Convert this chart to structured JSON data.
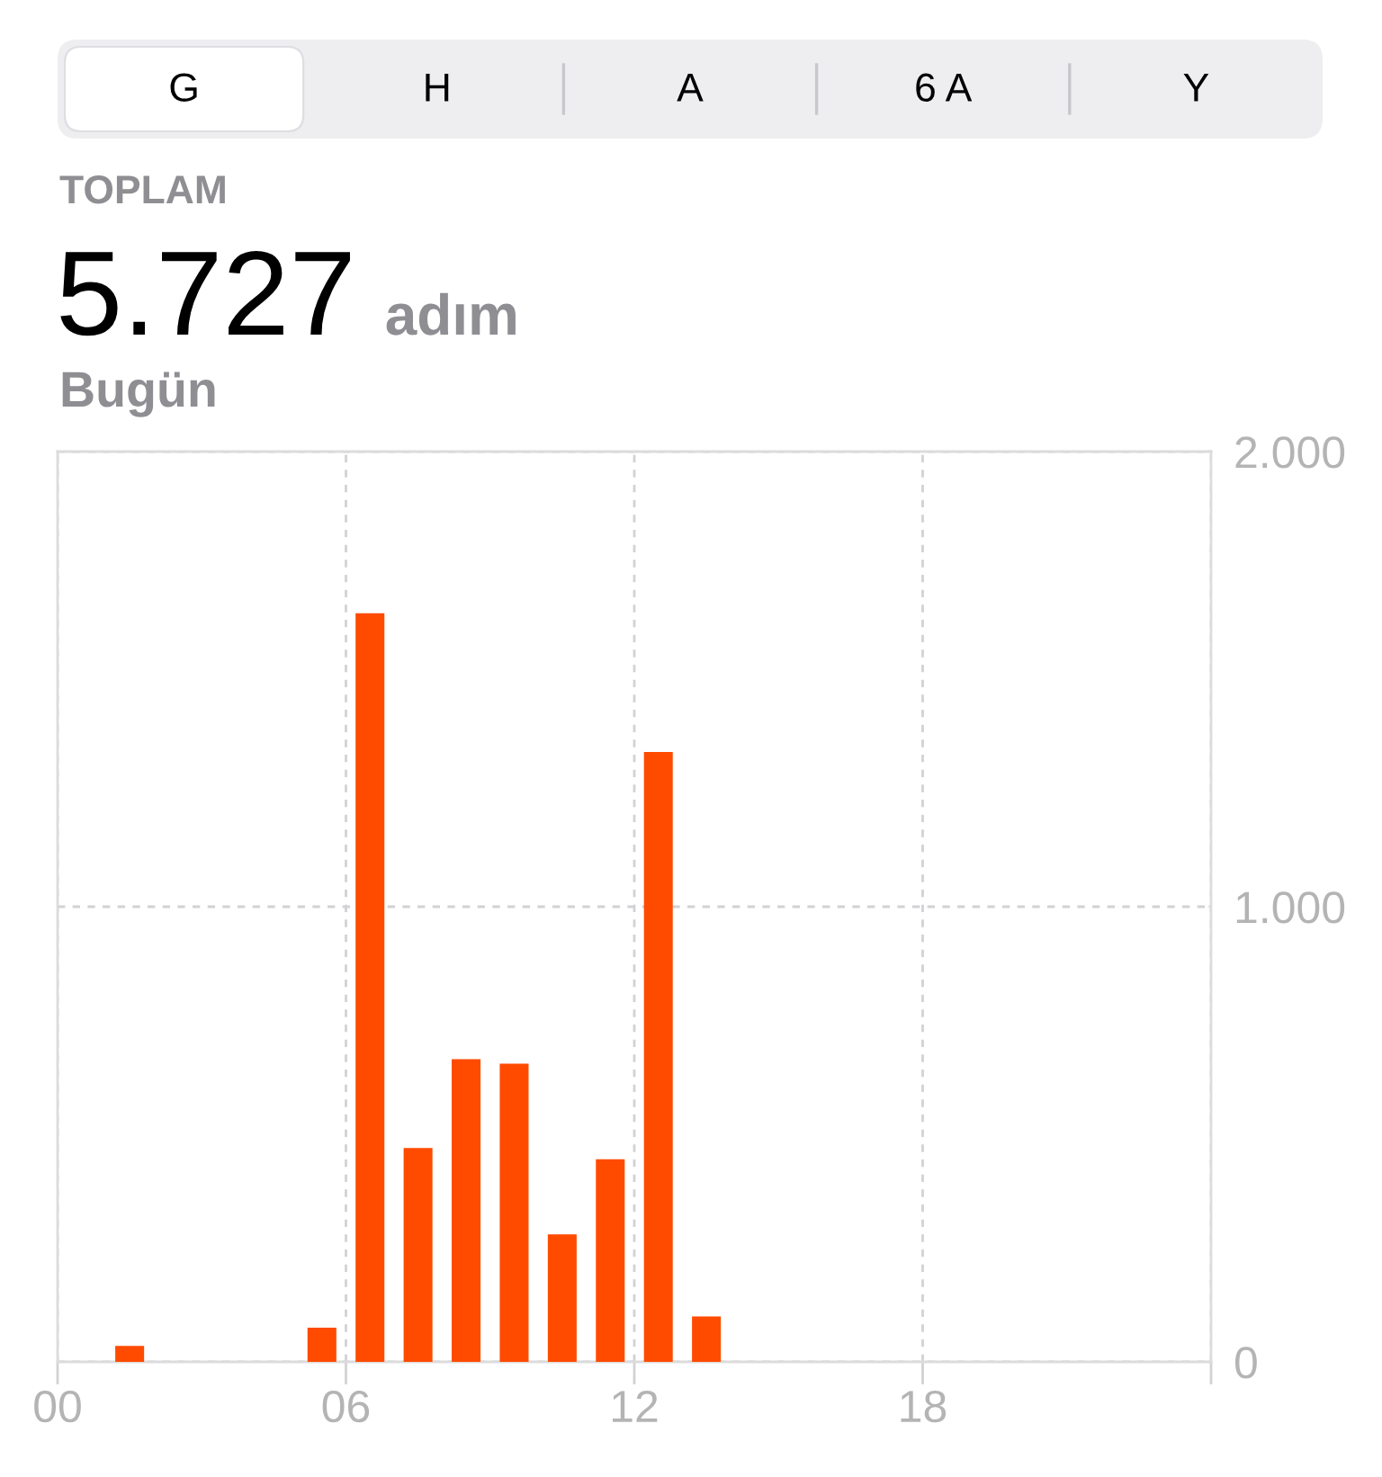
{
  "chart_data": {
    "type": "bar",
    "title": "5.727 adım",
    "subtitle": "Bugün",
    "annotations": [
      "G",
      "H",
      "A",
      "6 A",
      "Y",
      "TOPLAM"
    ],
    "x": [
      1.5,
      5.5,
      6.5,
      7.5,
      8.5,
      9.5,
      10.5,
      11.5,
      12.5,
      13.5
    ],
    "values": [
      35,
      75,
      1645,
      470,
      665,
      655,
      280,
      445,
      1340,
      100
    ],
    "color": "#ff4b00",
    "xlim": [
      0,
      24
    ],
    "xticks": [
      {
        "value": 0,
        "label": "00"
      },
      {
        "value": 6,
        "label": "06"
      },
      {
        "value": 12,
        "label": "12"
      },
      {
        "value": 18,
        "label": "18"
      },
      {
        "value": 24,
        "label": null
      }
    ],
    "ylim": [
      0,
      2000
    ],
    "yticks": [
      0,
      {
        "value": 1000,
        "label": "1.000"
      },
      {
        "value": 2000,
        "label": "2.000"
      }
    ],
    "grid": true
  }
}
